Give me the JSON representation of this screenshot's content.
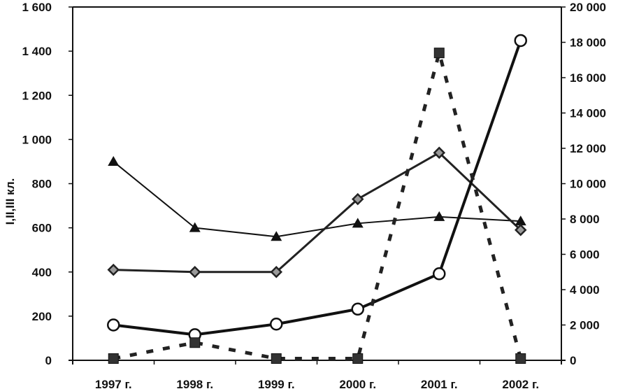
{
  "chart_data": {
    "type": "line",
    "title": "",
    "xlabel": "",
    "ylabel": "I,II,III кл.",
    "y2label": "",
    "categories": [
      "1997 г.",
      "1998 г.",
      "1999 г.",
      "2000 г.",
      "2001 г.",
      "2002 г."
    ],
    "ylim": [
      0,
      1600
    ],
    "y_ticks": [
      "0",
      "200",
      "400",
      "600",
      "800",
      "1 000",
      "1 200",
      "1 400",
      "1 600"
    ],
    "y2lim": [
      0,
      20000
    ],
    "y2_ticks": [
      "0",
      "2 000",
      "4 000",
      "6 000",
      "8 000",
      "10 000",
      "12 000",
      "14 000",
      "16 000",
      "18 000",
      "20 000"
    ],
    "grid": false,
    "legend": "none",
    "series": [
      {
        "marker": "triangle",
        "line": "solid-thin",
        "axis": "left",
        "color": "#111111",
        "values": [
          900,
          600,
          560,
          620,
          650,
          630
        ]
      },
      {
        "marker": "diamond",
        "line": "solid",
        "axis": "left",
        "color": "#222222",
        "values": [
          410,
          400,
          400,
          730,
          940,
          590
        ]
      },
      {
        "marker": "circle-open",
        "line": "solid-thick",
        "axis": "right",
        "color": "#111111",
        "values": [
          2000,
          1450,
          2050,
          2900,
          4900,
          18100
        ]
      },
      {
        "marker": "square",
        "line": "dashed",
        "axis": "right",
        "color": "#222222",
        "values": [
          100,
          1000,
          100,
          100,
          17400,
          100
        ]
      }
    ]
  }
}
